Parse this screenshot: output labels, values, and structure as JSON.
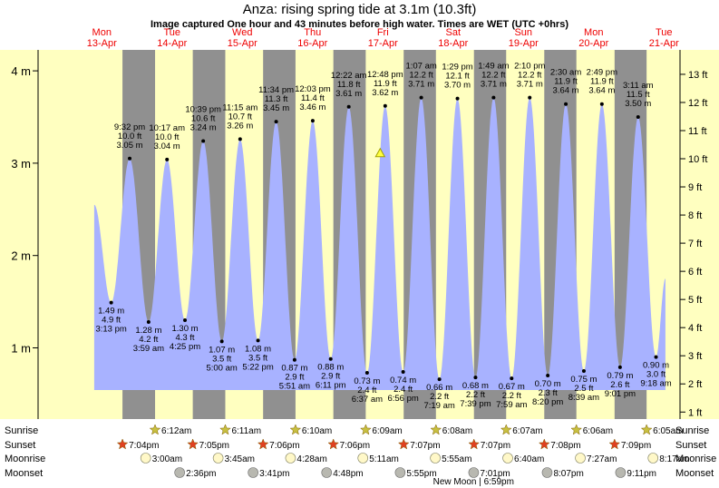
{
  "title": "Anza: rising  spring tide at 3.1m (10.3ft)",
  "subtitle": "Image captured One hour and 43 minutes before high water. Times are WET (UTC +0hrs)",
  "colors": {
    "tide_fill": "#a8b2ff",
    "day_band": "#ffffc0",
    "night_band": "#909090",
    "day_label": "#ee0000",
    "sunrise_star": "#c8c040",
    "sunset_star": "#e04020"
  },
  "chart_data": {
    "type": "area",
    "title": "Anza: rising  spring tide at 3.1m (10.3ft)",
    "subtitle": "Image captured One hour and 43 minutes before high water. Times are WET (UTC +0hrs)",
    "ylabel_left": "m",
    "ylabel_right": "ft",
    "left_axis_ticks": [
      "1 m",
      "2 m",
      "3 m",
      "4 m"
    ],
    "right_axis_ticks": [
      "1 ft",
      "2 ft",
      "3 ft",
      "4 ft",
      "5 ft",
      "6 ft",
      "7 ft",
      "8 ft",
      "9 ft",
      "10 ft",
      "11 ft",
      "12 ft",
      "13 ft"
    ],
    "days": [
      {
        "name": "Mon",
        "date": "13-Apr"
      },
      {
        "name": "Tue",
        "date": "14-Apr"
      },
      {
        "name": "Wed",
        "date": "15-Apr"
      },
      {
        "name": "Thu",
        "date": "16-Apr"
      },
      {
        "name": "Fri",
        "date": "17-Apr"
      },
      {
        "name": "Sat",
        "date": "18-Apr"
      },
      {
        "name": "Sun",
        "date": "19-Apr"
      },
      {
        "name": "Mon",
        "date": "20-Apr"
      },
      {
        "name": "Tue",
        "date": "21-Apr"
      }
    ],
    "current_level_m": 3.1,
    "extremes": [
      {
        "type": "low",
        "day": 0,
        "time": "3:13 pm",
        "m": "1.49 m",
        "ft": "4.9 ft",
        "value": 1.49
      },
      {
        "type": "high",
        "day": 0,
        "time": "9:32 pm",
        "m": "3.05 m",
        "ft": "10.0 ft",
        "value": 3.05
      },
      {
        "type": "low",
        "day": 1,
        "time": "3:59 am",
        "m": "1.28 m",
        "ft": "4.2 ft",
        "value": 1.28
      },
      {
        "type": "high",
        "day": 1,
        "time": "10:17 am",
        "m": "3.04 m",
        "ft": "10.0 ft",
        "value": 3.04
      },
      {
        "type": "low",
        "day": 1,
        "time": "4:25 pm",
        "m": "1.30 m",
        "ft": "4.3 ft",
        "value": 1.3
      },
      {
        "type": "high",
        "day": 1,
        "time": "10:39 pm",
        "m": "3.24 m",
        "ft": "10.6 ft",
        "value": 3.24
      },
      {
        "type": "low",
        "day": 2,
        "time": "5:00 am",
        "m": "1.07 m",
        "ft": "3.5 ft",
        "value": 1.07
      },
      {
        "type": "high",
        "day": 2,
        "time": "11:15 am",
        "m": "3.26 m",
        "ft": "10.7 ft",
        "value": 3.26
      },
      {
        "type": "low",
        "day": 2,
        "time": "5:22 pm",
        "m": "1.08 m",
        "ft": "3.5 ft",
        "value": 1.08
      },
      {
        "type": "high",
        "day": 2,
        "time": "11:34 pm",
        "m": "3.45 m",
        "ft": "11.3 ft",
        "value": 3.45
      },
      {
        "type": "low",
        "day": 3,
        "time": "5:51 am",
        "m": "0.87 m",
        "ft": "2.9 ft",
        "value": 0.87
      },
      {
        "type": "high",
        "day": 3,
        "time": "12:03 pm",
        "m": "3.46 m",
        "ft": "11.4 ft",
        "value": 3.46
      },
      {
        "type": "low",
        "day": 3,
        "time": "6:11 pm",
        "m": "0.88 m",
        "ft": "2.9 ft",
        "value": 0.88
      },
      {
        "type": "high",
        "day": 4,
        "time": "12:22 am",
        "m": "3.61 m",
        "ft": "11.8 ft",
        "value": 3.61
      },
      {
        "type": "low",
        "day": 4,
        "time": "6:37 am",
        "m": "0.73 m",
        "ft": "2.4 ft",
        "value": 0.73
      },
      {
        "type": "high",
        "day": 4,
        "time": "12:48 pm",
        "m": "3.62 m",
        "ft": "11.9 ft",
        "value": 3.62
      },
      {
        "type": "low",
        "day": 4,
        "time": "6:56 pm",
        "m": "0.74 m",
        "ft": "2.4 ft",
        "value": 0.74
      },
      {
        "type": "high",
        "day": 5,
        "time": "1:07 am",
        "m": "3.71 m",
        "ft": "12.2 ft",
        "value": 3.71
      },
      {
        "type": "low",
        "day": 5,
        "time": "7:19 am",
        "m": "0.66 m",
        "ft": "2.2 ft",
        "value": 0.66
      },
      {
        "type": "high",
        "day": 5,
        "time": "1:29 pm",
        "m": "3.70 m",
        "ft": "12.1 ft",
        "value": 3.7
      },
      {
        "type": "low",
        "day": 5,
        "time": "7:39 pm",
        "m": "0.68 m",
        "ft": "2.2 ft",
        "value": 0.68
      },
      {
        "type": "high",
        "day": 6,
        "time": "1:49 am",
        "m": "3.71 m",
        "ft": "12.2 ft",
        "value": 3.71
      },
      {
        "type": "low",
        "day": 6,
        "time": "7:59 am",
        "m": "0.67 m",
        "ft": "2.2 ft",
        "value": 0.67
      },
      {
        "type": "high",
        "day": 6,
        "time": "2:10 pm",
        "m": "3.71 m",
        "ft": "12.2 ft",
        "value": 3.71
      },
      {
        "type": "low",
        "day": 6,
        "time": "8:20 pm",
        "m": "0.70 m",
        "ft": "2.3 ft",
        "value": 0.7
      },
      {
        "type": "high",
        "day": 7,
        "time": "2:30 am",
        "m": "3.64 m",
        "ft": "11.9 ft",
        "value": 3.64
      },
      {
        "type": "low",
        "day": 7,
        "time": "8:39 am",
        "m": "0.75 m",
        "ft": "2.5 ft",
        "value": 0.75
      },
      {
        "type": "high",
        "day": 7,
        "time": "2:49 pm",
        "m": "3.64 m",
        "ft": "11.9 ft",
        "value": 3.64
      },
      {
        "type": "low",
        "day": 7,
        "time": "9:01 pm",
        "m": "0.79 m",
        "ft": "2.6 ft",
        "value": 0.79
      },
      {
        "type": "high",
        "day": 8,
        "time": "3:11 am",
        "m": "3.50 m",
        "ft": "11.5 ft",
        "value": 3.5
      },
      {
        "type": "low",
        "day": 8,
        "time": "9:18 am",
        "m": "0.90 m",
        "ft": "3.0 ft",
        "value": 0.9
      }
    ],
    "sun_moon": {
      "row_labels": [
        "Sunrise",
        "Sunset",
        "Moonrise",
        "Moonset"
      ],
      "sunrise": [
        "6:12am",
        "6:11am",
        "6:10am",
        "6:09am",
        "6:08am",
        "6:07am",
        "6:06am",
        "6:05am"
      ],
      "sunset": [
        "7:04pm",
        "7:05pm",
        "7:06pm",
        "7:06pm",
        "7:07pm",
        "7:07pm",
        "7:08pm",
        "7:09pm"
      ],
      "moonrise": [
        "3:00am",
        "3:45am",
        "4:28am",
        "5:11am",
        "5:55am",
        "6:40am",
        "7:27am",
        "8:17am"
      ],
      "moonset": [
        "2:36pm",
        "3:41pm",
        "4:48pm",
        "5:55pm",
        "7:01pm",
        "8:07pm",
        "9:11pm"
      ],
      "note": "New Moon | 6:59pm"
    }
  }
}
